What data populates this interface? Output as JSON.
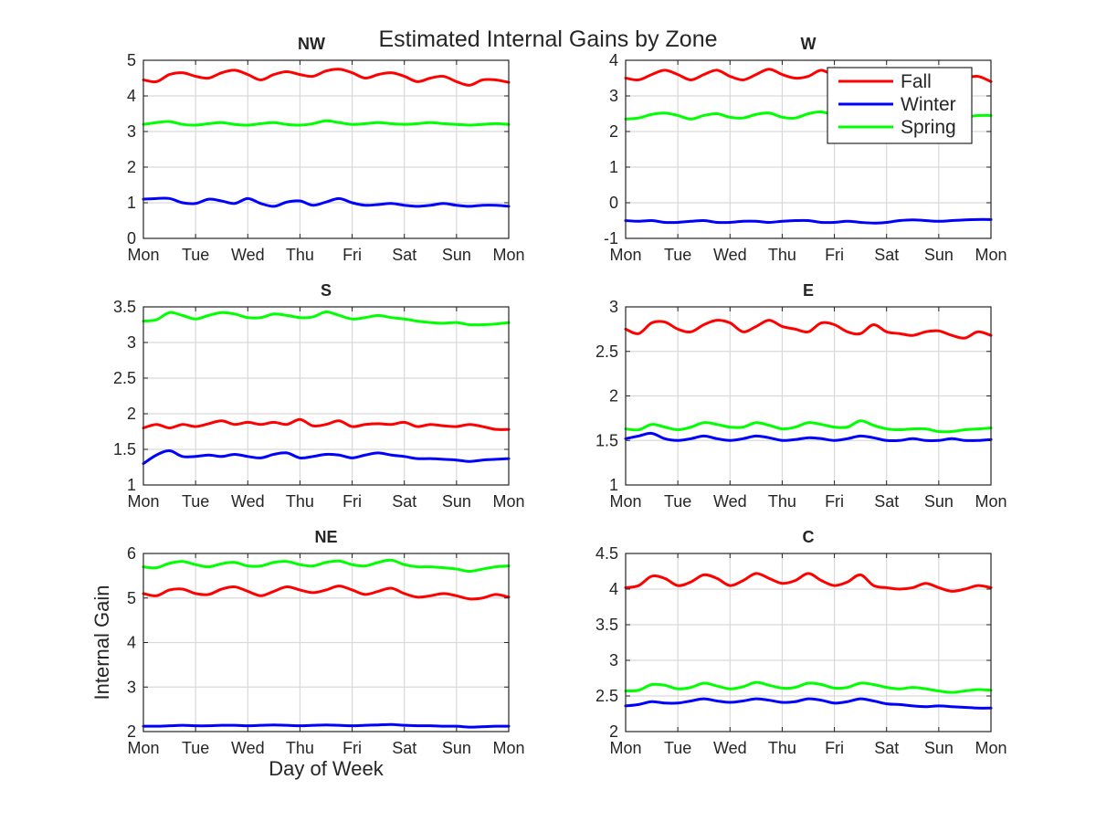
{
  "figure_title": "Estimated Internal Gains by Zone",
  "colors": {
    "fall": "#ff0000",
    "winter": "#0000ff",
    "spring": "#00ff00",
    "grid": "#d9d9d9",
    "axes": "#262626"
  },
  "legend": {
    "placement": "top-right (W panel)",
    "entries": [
      "Fall",
      "Winter",
      "Spring"
    ]
  },
  "chart_data": [
    {
      "type": "line",
      "title": "NW",
      "xlabel": "",
      "ylabel": "",
      "xlim": [
        0,
        7
      ],
      "ylim": [
        0,
        5
      ],
      "yticks": [
        0,
        1,
        2,
        3,
        4,
        5
      ],
      "xticklabels": [
        "Mon",
        "Tue",
        "Wed",
        "Thu",
        "Fri",
        "Sat",
        "Sun",
        "Mon"
      ],
      "grid": true,
      "x": [
        0,
        0.25,
        0.5,
        0.75,
        1,
        1.25,
        1.5,
        1.75,
        2,
        2.25,
        2.5,
        2.75,
        3,
        3.25,
        3.5,
        3.75,
        4,
        4.25,
        4.5,
        4.75,
        5,
        5.25,
        5.5,
        5.75,
        6,
        6.25,
        6.5,
        6.75,
        7
      ],
      "series": [
        {
          "name": "Fall",
          "values": [
            4.45,
            4.4,
            4.6,
            4.65,
            4.55,
            4.5,
            4.65,
            4.72,
            4.6,
            4.45,
            4.6,
            4.68,
            4.6,
            4.55,
            4.7,
            4.75,
            4.65,
            4.5,
            4.6,
            4.65,
            4.55,
            4.4,
            4.5,
            4.55,
            4.4,
            4.3,
            4.45,
            4.45,
            4.38
          ]
        },
        {
          "name": "Winter",
          "values": [
            1.1,
            1.12,
            1.12,
            1.0,
            0.98,
            1.1,
            1.05,
            0.98,
            1.12,
            0.98,
            0.9,
            1.02,
            1.05,
            0.93,
            1.02,
            1.12,
            1.0,
            0.93,
            0.95,
            0.98,
            0.93,
            0.9,
            0.93,
            0.98,
            0.93,
            0.9,
            0.93,
            0.93,
            0.9
          ]
        },
        {
          "name": "Spring",
          "values": [
            3.2,
            3.25,
            3.28,
            3.2,
            3.18,
            3.22,
            3.25,
            3.2,
            3.18,
            3.22,
            3.25,
            3.2,
            3.18,
            3.22,
            3.3,
            3.25,
            3.2,
            3.22,
            3.25,
            3.22,
            3.2,
            3.22,
            3.25,
            3.22,
            3.2,
            3.18,
            3.2,
            3.22,
            3.2
          ]
        }
      ]
    },
    {
      "type": "line",
      "title": "W",
      "xlabel": "",
      "ylabel": "",
      "xlim": [
        0,
        7
      ],
      "ylim": [
        -1,
        4
      ],
      "yticks": [
        -1,
        0,
        1,
        2,
        3,
        4
      ],
      "xticklabels": [
        "Mon",
        "Tue",
        "Wed",
        "Thu",
        "Fri",
        "Sat",
        "Sun",
        "Mon"
      ],
      "grid": true,
      "x": [
        0,
        0.25,
        0.5,
        0.75,
        1,
        1.25,
        1.5,
        1.75,
        2,
        2.25,
        2.5,
        2.75,
        3,
        3.25,
        3.5,
        3.75,
        4,
        4.25,
        4.5,
        4.75,
        5,
        5.25,
        5.5,
        5.75,
        6,
        6.25,
        6.5,
        6.75,
        7
      ],
      "series": [
        {
          "name": "Fall",
          "values": [
            3.5,
            3.45,
            3.6,
            3.72,
            3.6,
            3.45,
            3.6,
            3.72,
            3.55,
            3.45,
            3.6,
            3.75,
            3.6,
            3.5,
            3.55,
            3.72,
            3.55,
            3.45,
            3.6,
            3.65,
            3.55,
            3.45,
            3.6,
            3.62,
            3.55,
            3.45,
            3.5,
            3.55,
            3.4
          ]
        },
        {
          "name": "Winter",
          "values": [
            -0.5,
            -0.52,
            -0.5,
            -0.55,
            -0.55,
            -0.52,
            -0.5,
            -0.55,
            -0.55,
            -0.52,
            -0.52,
            -0.55,
            -0.52,
            -0.5,
            -0.5,
            -0.55,
            -0.55,
            -0.52,
            -0.55,
            -0.57,
            -0.55,
            -0.5,
            -0.48,
            -0.5,
            -0.52,
            -0.5,
            -0.48,
            -0.47,
            -0.47
          ]
        },
        {
          "name": "Spring",
          "values": [
            2.35,
            2.38,
            2.48,
            2.52,
            2.45,
            2.35,
            2.45,
            2.5,
            2.4,
            2.38,
            2.48,
            2.52,
            2.4,
            2.38,
            2.5,
            2.55,
            2.45,
            2.38,
            2.45,
            2.5,
            2.4,
            2.35,
            2.4,
            2.48,
            2.42,
            2.35,
            2.4,
            2.45,
            2.45
          ]
        }
      ]
    },
    {
      "type": "line",
      "title": "S",
      "xlabel": "",
      "ylabel": "",
      "xlim": [
        0,
        7
      ],
      "ylim": [
        1,
        3.5
      ],
      "yticks": [
        1,
        1.5,
        2,
        2.5,
        3,
        3.5
      ],
      "xticklabels": [
        "Mon",
        "Tue",
        "Wed",
        "Thu",
        "Fri",
        "Sat",
        "Sun",
        "Mon"
      ],
      "grid": true,
      "x": [
        0,
        0.25,
        0.5,
        0.75,
        1,
        1.25,
        1.5,
        1.75,
        2,
        2.25,
        2.5,
        2.75,
        3,
        3.25,
        3.5,
        3.75,
        4,
        4.25,
        4.5,
        4.75,
        5,
        5.25,
        5.5,
        5.75,
        6,
        6.25,
        6.5,
        6.75,
        7
      ],
      "series": [
        {
          "name": "Fall",
          "values": [
            1.8,
            1.85,
            1.8,
            1.85,
            1.82,
            1.86,
            1.9,
            1.85,
            1.88,
            1.85,
            1.88,
            1.85,
            1.92,
            1.83,
            1.85,
            1.9,
            1.82,
            1.85,
            1.86,
            1.85,
            1.88,
            1.82,
            1.85,
            1.83,
            1.82,
            1.85,
            1.82,
            1.78,
            1.78
          ]
        },
        {
          "name": "Winter",
          "values": [
            1.3,
            1.42,
            1.48,
            1.4,
            1.4,
            1.42,
            1.4,
            1.43,
            1.4,
            1.38,
            1.43,
            1.45,
            1.38,
            1.4,
            1.43,
            1.42,
            1.38,
            1.42,
            1.45,
            1.42,
            1.4,
            1.37,
            1.37,
            1.36,
            1.35,
            1.33,
            1.35,
            1.36,
            1.37
          ]
        },
        {
          "name": "Spring",
          "values": [
            3.3,
            3.32,
            3.42,
            3.38,
            3.33,
            3.38,
            3.42,
            3.4,
            3.35,
            3.35,
            3.4,
            3.38,
            3.35,
            3.36,
            3.43,
            3.38,
            3.33,
            3.35,
            3.38,
            3.35,
            3.33,
            3.3,
            3.28,
            3.27,
            3.28,
            3.25,
            3.25,
            3.26,
            3.28
          ]
        }
      ]
    },
    {
      "type": "line",
      "title": "E",
      "xlabel": "",
      "ylabel": "",
      "xlim": [
        0,
        7
      ],
      "ylim": [
        1,
        3
      ],
      "yticks": [
        1,
        1.5,
        2,
        2.5,
        3
      ],
      "xticklabels": [
        "Mon",
        "Tue",
        "Wed",
        "Thu",
        "Fri",
        "Sat",
        "Sun",
        "Mon"
      ],
      "grid": true,
      "x": [
        0,
        0.25,
        0.5,
        0.75,
        1,
        1.25,
        1.5,
        1.75,
        2,
        2.25,
        2.5,
        2.75,
        3,
        3.25,
        3.5,
        3.75,
        4,
        4.25,
        4.5,
        4.75,
        5,
        5.25,
        5.5,
        5.75,
        6,
        6.25,
        6.5,
        6.75,
        7
      ],
      "series": [
        {
          "name": "Fall",
          "values": [
            2.75,
            2.7,
            2.82,
            2.83,
            2.75,
            2.72,
            2.8,
            2.85,
            2.82,
            2.72,
            2.78,
            2.85,
            2.78,
            2.75,
            2.72,
            2.82,
            2.8,
            2.72,
            2.7,
            2.8,
            2.72,
            2.7,
            2.68,
            2.72,
            2.73,
            2.68,
            2.65,
            2.72,
            2.68
          ]
        },
        {
          "name": "Winter",
          "values": [
            1.52,
            1.55,
            1.58,
            1.52,
            1.5,
            1.52,
            1.55,
            1.52,
            1.5,
            1.52,
            1.55,
            1.53,
            1.5,
            1.51,
            1.53,
            1.52,
            1.5,
            1.52,
            1.55,
            1.53,
            1.5,
            1.5,
            1.52,
            1.5,
            1.5,
            1.52,
            1.5,
            1.5,
            1.51
          ]
        },
        {
          "name": "Spring",
          "values": [
            1.63,
            1.62,
            1.68,
            1.65,
            1.62,
            1.65,
            1.7,
            1.68,
            1.65,
            1.65,
            1.7,
            1.67,
            1.63,
            1.65,
            1.7,
            1.68,
            1.65,
            1.65,
            1.72,
            1.67,
            1.63,
            1.62,
            1.63,
            1.63,
            1.6,
            1.6,
            1.62,
            1.63,
            1.64
          ]
        }
      ]
    },
    {
      "type": "line",
      "title": "NE",
      "xlabel": "Day of Week",
      "ylabel": "Internal Gain",
      "xlim": [
        0,
        7
      ],
      "ylim": [
        2,
        6
      ],
      "yticks": [
        2,
        3,
        4,
        5,
        6
      ],
      "xticklabels": [
        "Mon",
        "Tue",
        "Wed",
        "Thu",
        "Fri",
        "Sat",
        "Sun",
        "Mon"
      ],
      "grid": true,
      "x": [
        0,
        0.25,
        0.5,
        0.75,
        1,
        1.25,
        1.5,
        1.75,
        2,
        2.25,
        2.5,
        2.75,
        3,
        3.25,
        3.5,
        3.75,
        4,
        4.25,
        4.5,
        4.75,
        5,
        5.25,
        5.5,
        5.75,
        6,
        6.25,
        6.5,
        6.75,
        7
      ],
      "series": [
        {
          "name": "Fall",
          "values": [
            5.1,
            5.05,
            5.18,
            5.2,
            5.1,
            5.08,
            5.2,
            5.25,
            5.15,
            5.05,
            5.15,
            5.25,
            5.18,
            5.12,
            5.18,
            5.27,
            5.18,
            5.08,
            5.15,
            5.22,
            5.1,
            5.02,
            5.05,
            5.1,
            5.05,
            4.98,
            5.0,
            5.08,
            5.02
          ]
        },
        {
          "name": "Winter",
          "values": [
            2.12,
            2.12,
            2.13,
            2.14,
            2.13,
            2.13,
            2.14,
            2.14,
            2.13,
            2.14,
            2.15,
            2.14,
            2.13,
            2.14,
            2.15,
            2.14,
            2.13,
            2.14,
            2.15,
            2.16,
            2.14,
            2.13,
            2.13,
            2.12,
            2.12,
            2.1,
            2.11,
            2.12,
            2.12
          ]
        },
        {
          "name": "Spring",
          "values": [
            5.7,
            5.68,
            5.78,
            5.82,
            5.75,
            5.7,
            5.77,
            5.8,
            5.72,
            5.72,
            5.8,
            5.82,
            5.75,
            5.72,
            5.8,
            5.83,
            5.75,
            5.72,
            5.8,
            5.85,
            5.75,
            5.7,
            5.7,
            5.68,
            5.65,
            5.6,
            5.65,
            5.7,
            5.72
          ]
        }
      ]
    },
    {
      "type": "line",
      "title": "C",
      "xlabel": "",
      "ylabel": "",
      "xlim": [
        0,
        7
      ],
      "ylim": [
        2,
        4.5
      ],
      "yticks": [
        2,
        2.5,
        3,
        3.5,
        4,
        4.5
      ],
      "xticklabels": [
        "Mon",
        "Tue",
        "Wed",
        "Thu",
        "Fri",
        "Sat",
        "Sun",
        "Mon"
      ],
      "grid": true,
      "x": [
        0,
        0.25,
        0.5,
        0.75,
        1,
        1.25,
        1.5,
        1.75,
        2,
        2.25,
        2.5,
        2.75,
        3,
        3.25,
        3.5,
        3.75,
        4,
        4.25,
        4.5,
        4.75,
        5,
        5.25,
        5.5,
        5.75,
        6,
        6.25,
        6.5,
        6.75,
        7
      ],
      "series": [
        {
          "name": "Fall",
          "values": [
            4.02,
            4.05,
            4.18,
            4.15,
            4.05,
            4.1,
            4.2,
            4.15,
            4.05,
            4.12,
            4.22,
            4.15,
            4.08,
            4.12,
            4.22,
            4.12,
            4.05,
            4.1,
            4.2,
            4.05,
            4.02,
            4.0,
            4.02,
            4.08,
            4.02,
            3.97,
            4.0,
            4.05,
            4.02
          ]
        },
        {
          "name": "Winter",
          "values": [
            2.36,
            2.38,
            2.42,
            2.4,
            2.4,
            2.43,
            2.46,
            2.43,
            2.41,
            2.43,
            2.46,
            2.44,
            2.41,
            2.42,
            2.46,
            2.44,
            2.4,
            2.42,
            2.46,
            2.43,
            2.39,
            2.38,
            2.36,
            2.35,
            2.36,
            2.35,
            2.34,
            2.33,
            2.33
          ]
        },
        {
          "name": "Spring",
          "values": [
            2.57,
            2.58,
            2.66,
            2.65,
            2.6,
            2.62,
            2.68,
            2.64,
            2.6,
            2.63,
            2.69,
            2.65,
            2.61,
            2.62,
            2.68,
            2.66,
            2.61,
            2.62,
            2.68,
            2.66,
            2.62,
            2.6,
            2.62,
            2.6,
            2.57,
            2.55,
            2.57,
            2.59,
            2.58
          ]
        }
      ]
    }
  ]
}
